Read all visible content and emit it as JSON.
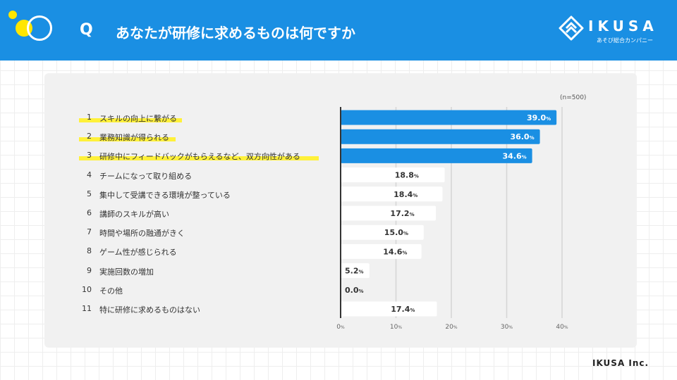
{
  "header": {
    "q_mark": "Q",
    "question": "あなたが研修に求めるものは何ですか",
    "brand_color": "#1a8fe3",
    "accent_color": "#ffe600"
  },
  "logo": {
    "text": "IKUSA",
    "sub": "あそび総合カンパニー"
  },
  "footer": {
    "company": "IKUSA Inc."
  },
  "chart_data": {
    "type": "bar",
    "orientation": "horizontal",
    "sample_note": "(n=500)",
    "categories": [
      {
        "rank": "1",
        "label": "スキルの向上に繋がる",
        "highlighted": true
      },
      {
        "rank": "2",
        "label": "業務知識が得られる",
        "highlighted": true
      },
      {
        "rank": "3",
        "label": "研修中にフィードバックがもらえるなど、双方向性がある",
        "highlighted": true
      },
      {
        "rank": "4",
        "label": "チームになって取り組める",
        "highlighted": false
      },
      {
        "rank": "5",
        "label": "集中して受講できる環境が整っている",
        "highlighted": false
      },
      {
        "rank": "6",
        "label": "講師のスキルが高い",
        "highlighted": false
      },
      {
        "rank": "7",
        "label": "時間や場所の融通がきく",
        "highlighted": false
      },
      {
        "rank": "8",
        "label": "ゲーム性が感じられる",
        "highlighted": false
      },
      {
        "rank": "9",
        "label": "実施回数の増加",
        "highlighted": false
      },
      {
        "rank": "10",
        "label": "その他",
        "highlighted": false
      },
      {
        "rank": "11",
        "label": "特に研修に求めるものはない",
        "highlighted": false
      }
    ],
    "values": [
      39.0,
      36.0,
      34.6,
      18.8,
      18.4,
      17.2,
      15.0,
      14.6,
      5.2,
      0.0,
      17.4
    ],
    "value_labels": [
      "39.0",
      "36.0",
      "34.6",
      "18.8",
      "18.4",
      "17.2",
      "15.0",
      "14.6",
      "5.2",
      "0.0",
      "17.4"
    ],
    "unit": "%",
    "xlim": [
      0,
      40
    ],
    "xticks": [
      0,
      10,
      20,
      30,
      40
    ],
    "xtick_labels": [
      "0",
      "10",
      "20",
      "30",
      "40"
    ],
    "grid": true,
    "top_bar_color": "#1a8fe3",
    "other_bar_color": "#ffffff",
    "highlight_color": "#fff13a"
  }
}
